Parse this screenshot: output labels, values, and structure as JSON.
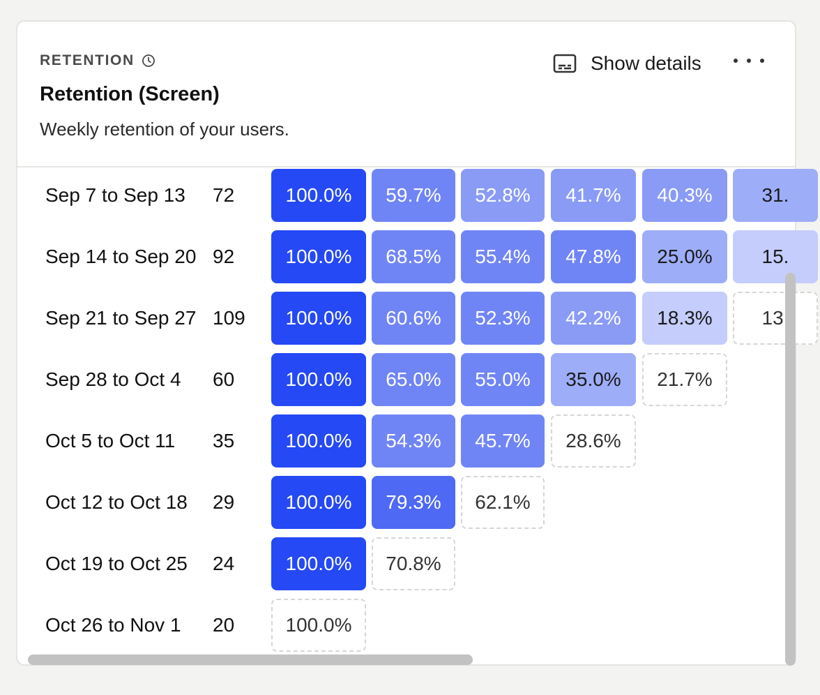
{
  "card": {
    "eyebrow": "RETENTION",
    "title": "Retention (Screen)",
    "subtitle": "Weekly retention of your users.",
    "show_details_label": "Show details",
    "icons": {
      "eyebrow": "clock-icon",
      "details": "subtitles-icon",
      "more": "more-horizontal-icon"
    }
  },
  "colors": {
    "period_0": "#2549f5",
    "scale": [
      "#2549f5",
      "#4e69f4",
      "#7085f5",
      "#8a9bf6",
      "#9eadf8",
      "#c4cdfb"
    ],
    "dashed_border": "#d6d6d2"
  },
  "rows": [
    {
      "date": "Sep 7 to Sep 13",
      "count": "72",
      "cells": [
        {
          "text": "100.0%",
          "shade": 0
        },
        {
          "text": "59.7%",
          "shade": 2
        },
        {
          "text": "52.8%",
          "shade": 3
        },
        {
          "text": "41.7%",
          "shade": 3
        },
        {
          "text": "40.3%",
          "shade": 3
        },
        {
          "text": "31.",
          "shade": 4
        }
      ]
    },
    {
      "date": "Sep 14 to Sep 20",
      "count": "92",
      "cells": [
        {
          "text": "100.0%",
          "shade": 0
        },
        {
          "text": "68.5%",
          "shade": 2
        },
        {
          "text": "55.4%",
          "shade": 2
        },
        {
          "text": "47.8%",
          "shade": 2
        },
        {
          "text": "25.0%",
          "shade": 4
        },
        {
          "text": "15.",
          "shade": 5
        }
      ]
    },
    {
      "date": "Sep 21 to Sep 27",
      "count": "109",
      "cells": [
        {
          "text": "100.0%",
          "shade": 0
        },
        {
          "text": "60.6%",
          "shade": 2
        },
        {
          "text": "52.3%",
          "shade": 2
        },
        {
          "text": "42.2%",
          "shade": 3
        },
        {
          "text": "18.3%",
          "shade": 5
        },
        {
          "text": "13.",
          "shade": "dashed"
        }
      ]
    },
    {
      "date": "Sep 28 to Oct 4",
      "count": "60",
      "cells": [
        {
          "text": "100.0%",
          "shade": 0
        },
        {
          "text": "65.0%",
          "shade": 2
        },
        {
          "text": "55.0%",
          "shade": 2
        },
        {
          "text": "35.0%",
          "shade": 4
        },
        {
          "text": "21.7%",
          "shade": "dashed"
        }
      ]
    },
    {
      "date": "Oct 5 to Oct 11",
      "count": "35",
      "cells": [
        {
          "text": "100.0%",
          "shade": 0
        },
        {
          "text": "54.3%",
          "shade": 2
        },
        {
          "text": "45.7%",
          "shade": 2
        },
        {
          "text": "28.6%",
          "shade": "dashed"
        }
      ]
    },
    {
      "date": "Oct 12 to Oct 18",
      "count": "29",
      "cells": [
        {
          "text": "100.0%",
          "shade": 0
        },
        {
          "text": "79.3%",
          "shade": 1
        },
        {
          "text": "62.1%",
          "shade": "dashed"
        }
      ]
    },
    {
      "date": "Oct 19 to Oct 25",
      "count": "24",
      "cells": [
        {
          "text": "100.0%",
          "shade": 0
        },
        {
          "text": "70.8%",
          "shade": "dashed"
        }
      ]
    },
    {
      "date": "Oct 26 to Nov 1",
      "count": "20",
      "cells": [
        {
          "text": "100.0%",
          "shade": "dashed"
        }
      ]
    }
  ]
}
